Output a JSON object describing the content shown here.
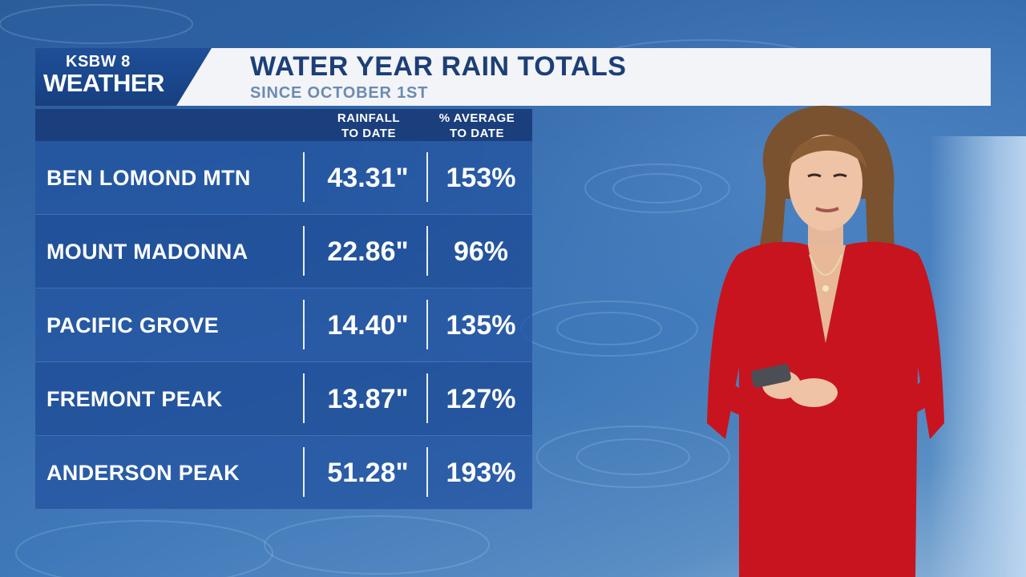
{
  "branding": {
    "logo_top": "KSBW 8",
    "logo_main": "WEATHER"
  },
  "header": {
    "title": "WATER YEAR RAIN TOTALS",
    "subtitle": "SINCE OCTOBER 1ST"
  },
  "table": {
    "columns": [
      {
        "line1": "RAINFALL",
        "line2": "TO DATE"
      },
      {
        "line1": "% AVERAGE",
        "line2": "TO DATE"
      }
    ],
    "rows": [
      {
        "name": "BEN LOMOND MTN",
        "rainfall": "43.31\"",
        "percent": "153%"
      },
      {
        "name": "MOUNT MADONNA",
        "rainfall": "22.86\"",
        "percent": "96%"
      },
      {
        "name": "PACIFIC GROVE",
        "rainfall": "14.40\"",
        "percent": "135%"
      },
      {
        "name": "FREMONT PEAK",
        "rainfall": "13.87\"",
        "percent": "127%"
      },
      {
        "name": "ANDERSON PEAK",
        "rainfall": "51.28\"",
        "percent": "193%"
      }
    ]
  },
  "colors": {
    "header_navy": "#1d3f78",
    "table_blue": "#1e4b96",
    "presenter_dress": "#c8141e"
  }
}
